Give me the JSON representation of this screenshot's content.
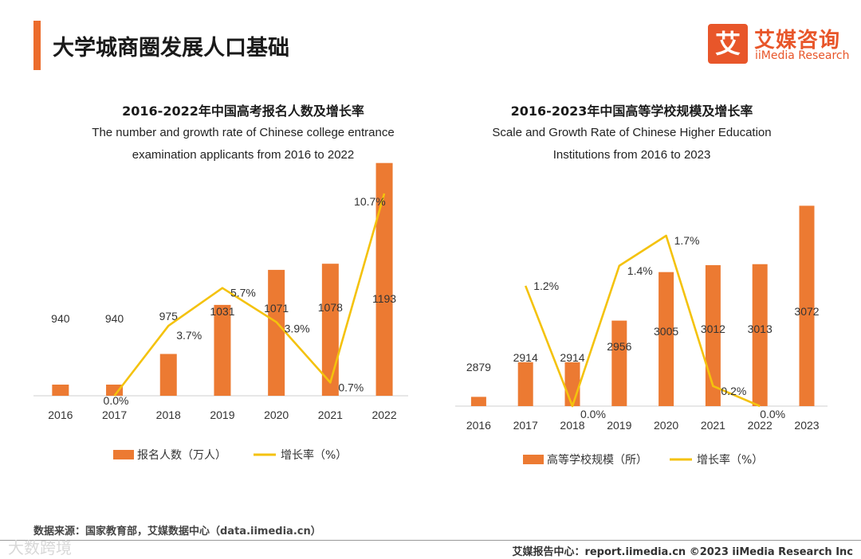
{
  "page": {
    "title": "大学城商圈发展人口基础",
    "logo_cn": "艾媒咨询",
    "logo_en": "iiMedia Research",
    "logo_mark": "艾",
    "source": "数据来源：国家教育部，艾媒数据中心（data.iimedia.cn）",
    "footer": "艾媒报告中心：report.iimedia.cn    ©2023  iiMedia Research  Inc",
    "watermark": "大数跨境"
  },
  "colors": {
    "bar": "#ec7a32",
    "line": "#f4c20d",
    "accent": "#ec6c2c"
  },
  "chart_data": [
    {
      "type": "bar",
      "title": "2016-2022年中国高考报名人数及增长率",
      "subtitle": [
        "The number and growth rate of Chinese college entrance",
        "examination applicants from 2016 to 2022"
      ],
      "categories": [
        "2016",
        "2017",
        "2018",
        "2019",
        "2020",
        "2021",
        "2022"
      ],
      "series": [
        {
          "name": "报名人数（万人）",
          "kind": "bar",
          "values": [
            940,
            940,
            975,
            1031,
            1071,
            1078,
            1193
          ]
        },
        {
          "name": "增长率（%）",
          "kind": "line",
          "values": [
            null,
            0.0,
            3.7,
            5.7,
            3.9,
            0.7,
            10.7
          ],
          "labels": [
            "",
            "0.0%",
            "3.7%",
            "5.7%",
            "3.9%",
            "0.7%",
            "10.7%"
          ]
        }
      ],
      "legend": "bottom"
    },
    {
      "type": "bar",
      "title": "2016-2023年中国高等学校规模及增长率",
      "subtitle": [
        "Scale and Growth Rate of Chinese Higher Education",
        "Institutions from 2016 to 2023"
      ],
      "categories": [
        "2016",
        "2017",
        "2018",
        "2019",
        "2020",
        "2021",
        "2022",
        "2023"
      ],
      "series": [
        {
          "name": "高等学校规模（所）",
          "kind": "bar",
          "values": [
            2879,
            2914,
            2914,
            2956,
            3005,
            3012,
            3013,
            3072
          ]
        },
        {
          "name": "增长率（%）",
          "kind": "line",
          "values": [
            null,
            1.2,
            0.0,
            1.4,
            1.7,
            0.2,
            0.0,
            null
          ],
          "labels": [
            "",
            "1.2%",
            "0.0%",
            "1.4%",
            "1.7%",
            "0.2%",
            "0.0%",
            ""
          ]
        }
      ],
      "legend": "bottom"
    }
  ]
}
